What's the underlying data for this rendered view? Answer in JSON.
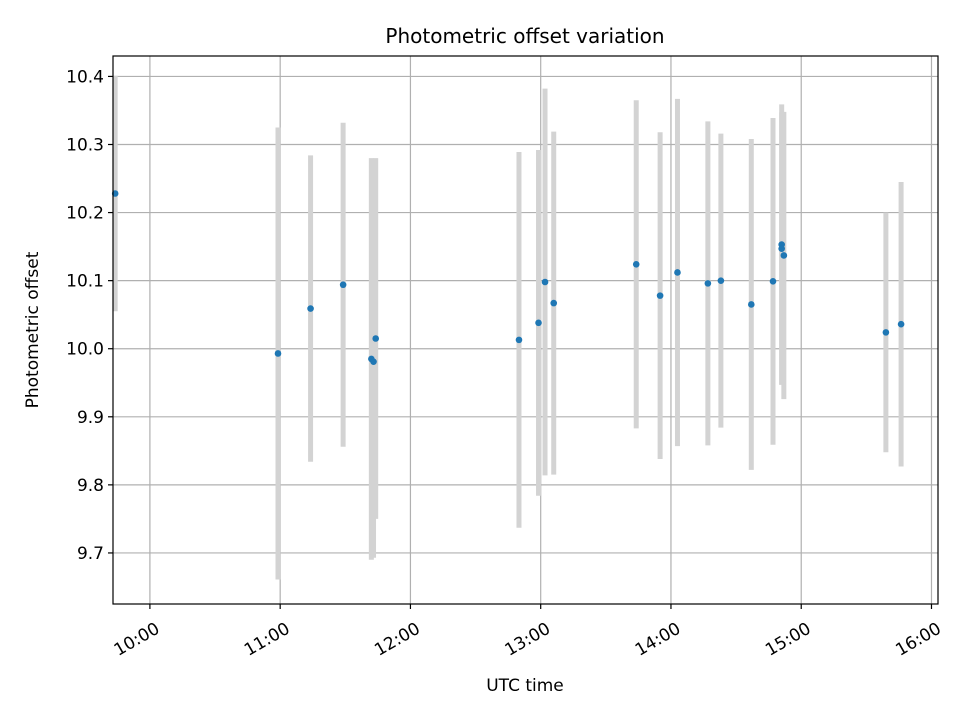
{
  "chart_data": {
    "type": "scatter",
    "title": "Photometric offset variation",
    "xlabel": "UTC time",
    "ylabel": "Photometric offset",
    "xlim": [
      "09:43",
      "16:03"
    ],
    "ylim": [
      9.625,
      10.43
    ],
    "x_ticks": [
      "10:00",
      "11:00",
      "12:00",
      "13:00",
      "14:00",
      "15:00",
      "16:00"
    ],
    "y_ticks": [
      9.7,
      9.8,
      9.9,
      10.0,
      10.1,
      10.2,
      10.3,
      10.4
    ],
    "y_tick_labels": [
      "9.7",
      "9.8",
      "9.9",
      "10.0",
      "10.1",
      "10.2",
      "10.3",
      "10.4"
    ],
    "grid": true,
    "colors": {
      "points": "#1f77b4",
      "errorbars": "#d3d3d3",
      "grid": "#b0b0b0"
    },
    "points": [
      {
        "t": "09:44",
        "y": 10.228,
        "err": 0.173
      },
      {
        "t": "10:59",
        "y": 9.993,
        "err": 0.332
      },
      {
        "t": "11:14",
        "y": 10.059,
        "err": 0.225
      },
      {
        "t": "11:29",
        "y": 10.094,
        "err": 0.238
      },
      {
        "t": "11:42",
        "y": 9.985,
        "err": 0.295
      },
      {
        "t": "11:43",
        "y": 9.981,
        "err": 0.288
      },
      {
        "t": "11:44",
        "y": 10.015,
        "err": 0.265
      },
      {
        "t": "12:50",
        "y": 10.013,
        "err": 0.276
      },
      {
        "t": "12:59",
        "y": 10.038,
        "err": 0.254
      },
      {
        "t": "13:02",
        "y": 10.098,
        "err": 0.284
      },
      {
        "t": "13:06",
        "y": 10.067,
        "err": 0.252
      },
      {
        "t": "13:44",
        "y": 10.124,
        "err": 0.241
      },
      {
        "t": "13:55",
        "y": 10.078,
        "err": 0.24
      },
      {
        "t": "14:03",
        "y": 10.112,
        "err": 0.255
      },
      {
        "t": "14:17",
        "y": 10.096,
        "err": 0.238
      },
      {
        "t": "14:23",
        "y": 10.1,
        "err": 0.216
      },
      {
        "t": "14:37",
        "y": 10.065,
        "err": 0.243
      },
      {
        "t": "14:47",
        "y": 10.099,
        "err": 0.24
      },
      {
        "t": "14:51",
        "y": 10.153,
        "err": 0.206
      },
      {
        "t": "14:51",
        "y": 10.147,
        "err": 0.2
      },
      {
        "t": "14:52",
        "y": 10.137,
        "err": 0.211
      },
      {
        "t": "15:39",
        "y": 10.024,
        "err": 0.176
      },
      {
        "t": "15:46",
        "y": 10.036,
        "err": 0.209
      }
    ]
  }
}
